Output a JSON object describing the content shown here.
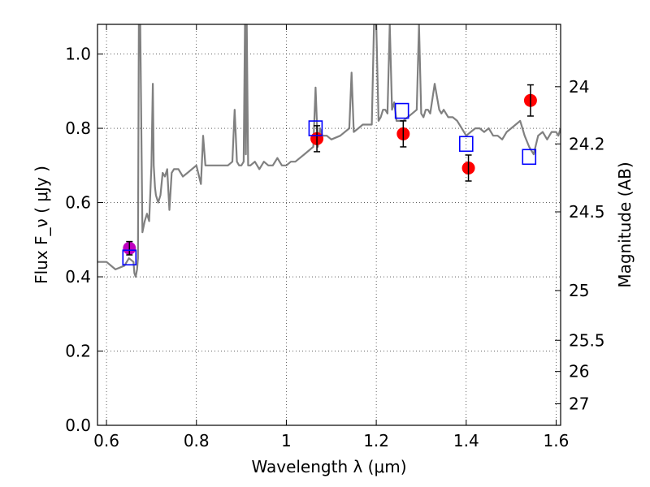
{
  "chart_data": {
    "type": "line",
    "title": "",
    "xlabel": "Wavelength  λ (μm)",
    "ylabel": "Flux  F_ν  ( μJy )",
    "ylabel_right": "Magnitude (AB)",
    "xlim": [
      0.58,
      1.61
    ],
    "ylim": [
      0.0,
      1.08
    ],
    "grid": true,
    "x_ticks": [
      0.6,
      0.8,
      1.0,
      1.2,
      1.4,
      1.6
    ],
    "x_tick_labels": [
      "0.6",
      "0.8",
      "1",
      "1.2",
      "1.4",
      "1.6"
    ],
    "y_ticks": [
      0.0,
      0.2,
      0.4,
      0.6,
      0.8,
      1.0
    ],
    "y_tick_labels": [
      "0.0",
      "0.2",
      "0.4",
      "0.6",
      "0.8",
      "1.0"
    ],
    "right_ticks": [
      {
        "label": "24",
        "flux": 0.912
      },
      {
        "label": "24.2",
        "flux": 0.758
      },
      {
        "label": "24.5",
        "flux": 0.575
      },
      {
        "label": "25",
        "flux": 0.363
      },
      {
        "label": "25.5",
        "flux": 0.229
      },
      {
        "label": "26",
        "flux": 0.145
      },
      {
        "label": "27",
        "flux": 0.058
      }
    ],
    "series": [
      {
        "kind": "model",
        "color": "#808080",
        "x": [
          0.58,
          0.6,
          0.62,
          0.64,
          0.65,
          0.66,
          0.662,
          0.665,
          0.668,
          0.67,
          0.672,
          0.675,
          0.68,
          0.685,
          0.69,
          0.695,
          0.7,
          0.703,
          0.705,
          0.708,
          0.71,
          0.715,
          0.72,
          0.725,
          0.73,
          0.735,
          0.74,
          0.745,
          0.75,
          0.76,
          0.77,
          0.78,
          0.79,
          0.8,
          0.81,
          0.815,
          0.82,
          0.83,
          0.85,
          0.87,
          0.88,
          0.885,
          0.89,
          0.895,
          0.9,
          0.905,
          0.908,
          0.91,
          0.912,
          0.915,
          0.92,
          0.93,
          0.94,
          0.95,
          0.96,
          0.97,
          0.98,
          0.99,
          1.0,
          1.01,
          1.02,
          1.03,
          1.04,
          1.05,
          1.06,
          1.065,
          1.07,
          1.075,
          1.08,
          1.09,
          1.1,
          1.12,
          1.14,
          1.145,
          1.15,
          1.16,
          1.17,
          1.18,
          1.19,
          1.195,
          1.2,
          1.205,
          1.21,
          1.215,
          1.22,
          1.225,
          1.23,
          1.235,
          1.24,
          1.245,
          1.25,
          1.26,
          1.27,
          1.28,
          1.29,
          1.295,
          1.3,
          1.305,
          1.31,
          1.315,
          1.32,
          1.33,
          1.34,
          1.345,
          1.35,
          1.36,
          1.37,
          1.38,
          1.39,
          1.4,
          1.41,
          1.42,
          1.43,
          1.44,
          1.45,
          1.46,
          1.47,
          1.48,
          1.49,
          1.5,
          1.51,
          1.52,
          1.525,
          1.53,
          1.54,
          1.55,
          1.56,
          1.57,
          1.58,
          1.59,
          1.6,
          1.605,
          1.61
        ],
        "y": [
          0.44,
          0.44,
          0.42,
          0.43,
          0.45,
          0.44,
          0.41,
          0.4,
          0.42,
          0.45,
          1.08,
          1.08,
          0.52,
          0.55,
          0.57,
          0.55,
          0.7,
          0.92,
          0.7,
          0.64,
          0.62,
          0.6,
          0.62,
          0.68,
          0.67,
          0.69,
          0.58,
          0.68,
          0.69,
          0.69,
          0.67,
          0.68,
          0.69,
          0.7,
          0.65,
          0.78,
          0.7,
          0.7,
          0.7,
          0.7,
          0.71,
          0.85,
          0.71,
          0.7,
          0.7,
          0.71,
          1.08,
          0.73,
          1.08,
          0.7,
          0.7,
          0.71,
          0.69,
          0.71,
          0.7,
          0.7,
          0.72,
          0.7,
          0.7,
          0.71,
          0.71,
          0.72,
          0.73,
          0.74,
          0.75,
          0.91,
          0.75,
          0.8,
          0.78,
          0.78,
          0.77,
          0.78,
          0.8,
          0.95,
          0.79,
          0.8,
          0.81,
          0.81,
          0.81,
          1.08,
          1.08,
          0.82,
          0.83,
          0.85,
          0.85,
          0.84,
          1.08,
          0.85,
          0.87,
          0.82,
          0.82,
          0.82,
          0.83,
          0.84,
          0.85,
          1.08,
          0.84,
          0.83,
          0.85,
          0.85,
          0.84,
          0.92,
          0.85,
          0.84,
          0.85,
          0.83,
          0.83,
          0.82,
          0.8,
          0.78,
          0.79,
          0.8,
          0.8,
          0.79,
          0.8,
          0.78,
          0.78,
          0.77,
          0.79,
          0.8,
          0.81,
          0.82,
          0.8,
          0.78,
          0.75,
          0.73,
          0.78,
          0.79,
          0.77,
          0.79,
          0.79,
          0.78,
          0.8
        ]
      },
      {
        "kind": "observed",
        "color": "#ff0000",
        "marker": "circle",
        "x": [
          1.068,
          1.26,
          1.405,
          1.543
        ],
        "y": [
          0.772,
          0.785,
          0.693,
          0.875
        ],
        "yerr": [
          0.035,
          0.035,
          0.035,
          0.042
        ]
      },
      {
        "kind": "observed",
        "color": "#bf00bf",
        "marker": "circle",
        "x": [
          0.651
        ],
        "y": [
          0.477
        ],
        "yerr": [
          0.018
        ]
      },
      {
        "kind": "synthetic",
        "color": "#0000ff",
        "marker": "square-open",
        "x": [
          0.651,
          1.065,
          1.257,
          1.4,
          1.54
        ],
        "y": [
          0.452,
          0.8,
          0.847,
          0.758,
          0.723
        ]
      }
    ]
  }
}
